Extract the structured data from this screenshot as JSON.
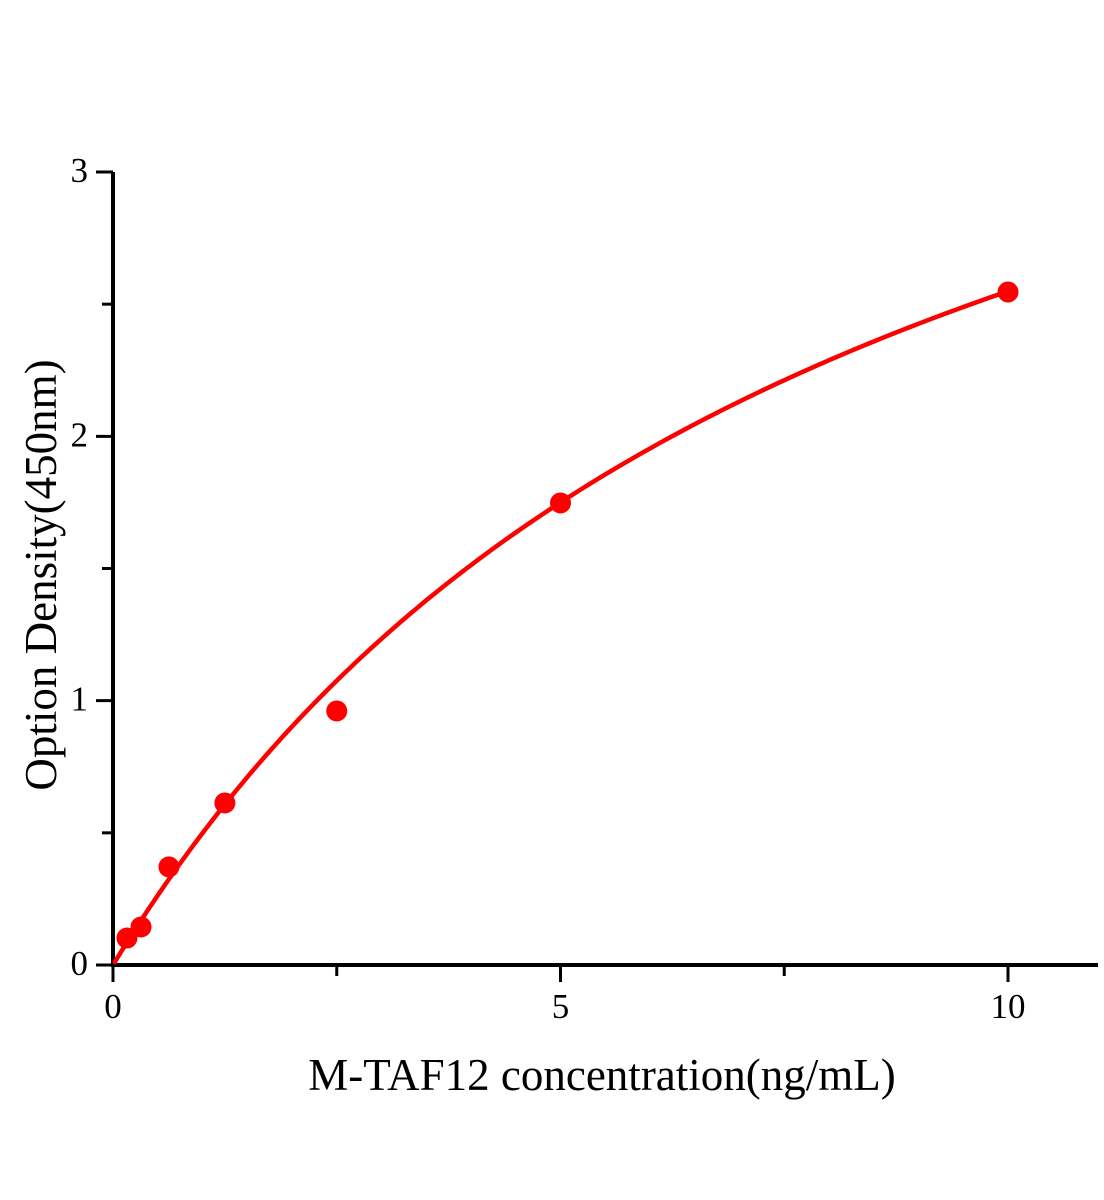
{
  "figure": {
    "background_color": "#ffffff",
    "axis_color": "#000000",
    "accent_color": "#ff0000"
  },
  "chart_data": {
    "type": "scatter",
    "title": "",
    "xlabel": "M-TAF12 concentration(ng/mL)",
    "ylabel": "Option Density(450nm)",
    "grid": false,
    "legend": null,
    "x_axis": {
      "range": [
        0,
        11.0
      ],
      "major_ticks": [
        0,
        5,
        10
      ],
      "major_tick_labels": [
        "0",
        "5",
        "10"
      ],
      "minor_ticks": [
        2.5,
        7.5
      ]
    },
    "y_axis": {
      "range": [
        0,
        3
      ],
      "major_ticks": [
        0,
        1,
        2,
        3
      ],
      "major_tick_labels": [
        "0",
        "1",
        "2",
        "3"
      ],
      "minor_ticks": [
        0.5,
        1.5,
        2.5
      ]
    },
    "series": [
      {
        "type": "scatter",
        "marker": "circle",
        "color": "#ff0000",
        "points": [
          {
            "x": 0.156,
            "y": 0.102
          },
          {
            "x": 0.313,
            "y": 0.144
          },
          {
            "x": 0.625,
            "y": 0.371
          },
          {
            "x": 1.25,
            "y": 0.613
          },
          {
            "x": 2.5,
            "y": 0.961
          },
          {
            "x": 5,
            "y": 1.748
          },
          {
            "x": 10,
            "y": 2.546
          }
        ]
      },
      {
        "type": "line",
        "color": "#ff0000",
        "fit": {
          "model": "y = Vmax*x/(K+x)",
          "Vmax": 4.69,
          "K": 8.4,
          "x_start": 0.02,
          "x_end": 10
        }
      }
    ]
  }
}
